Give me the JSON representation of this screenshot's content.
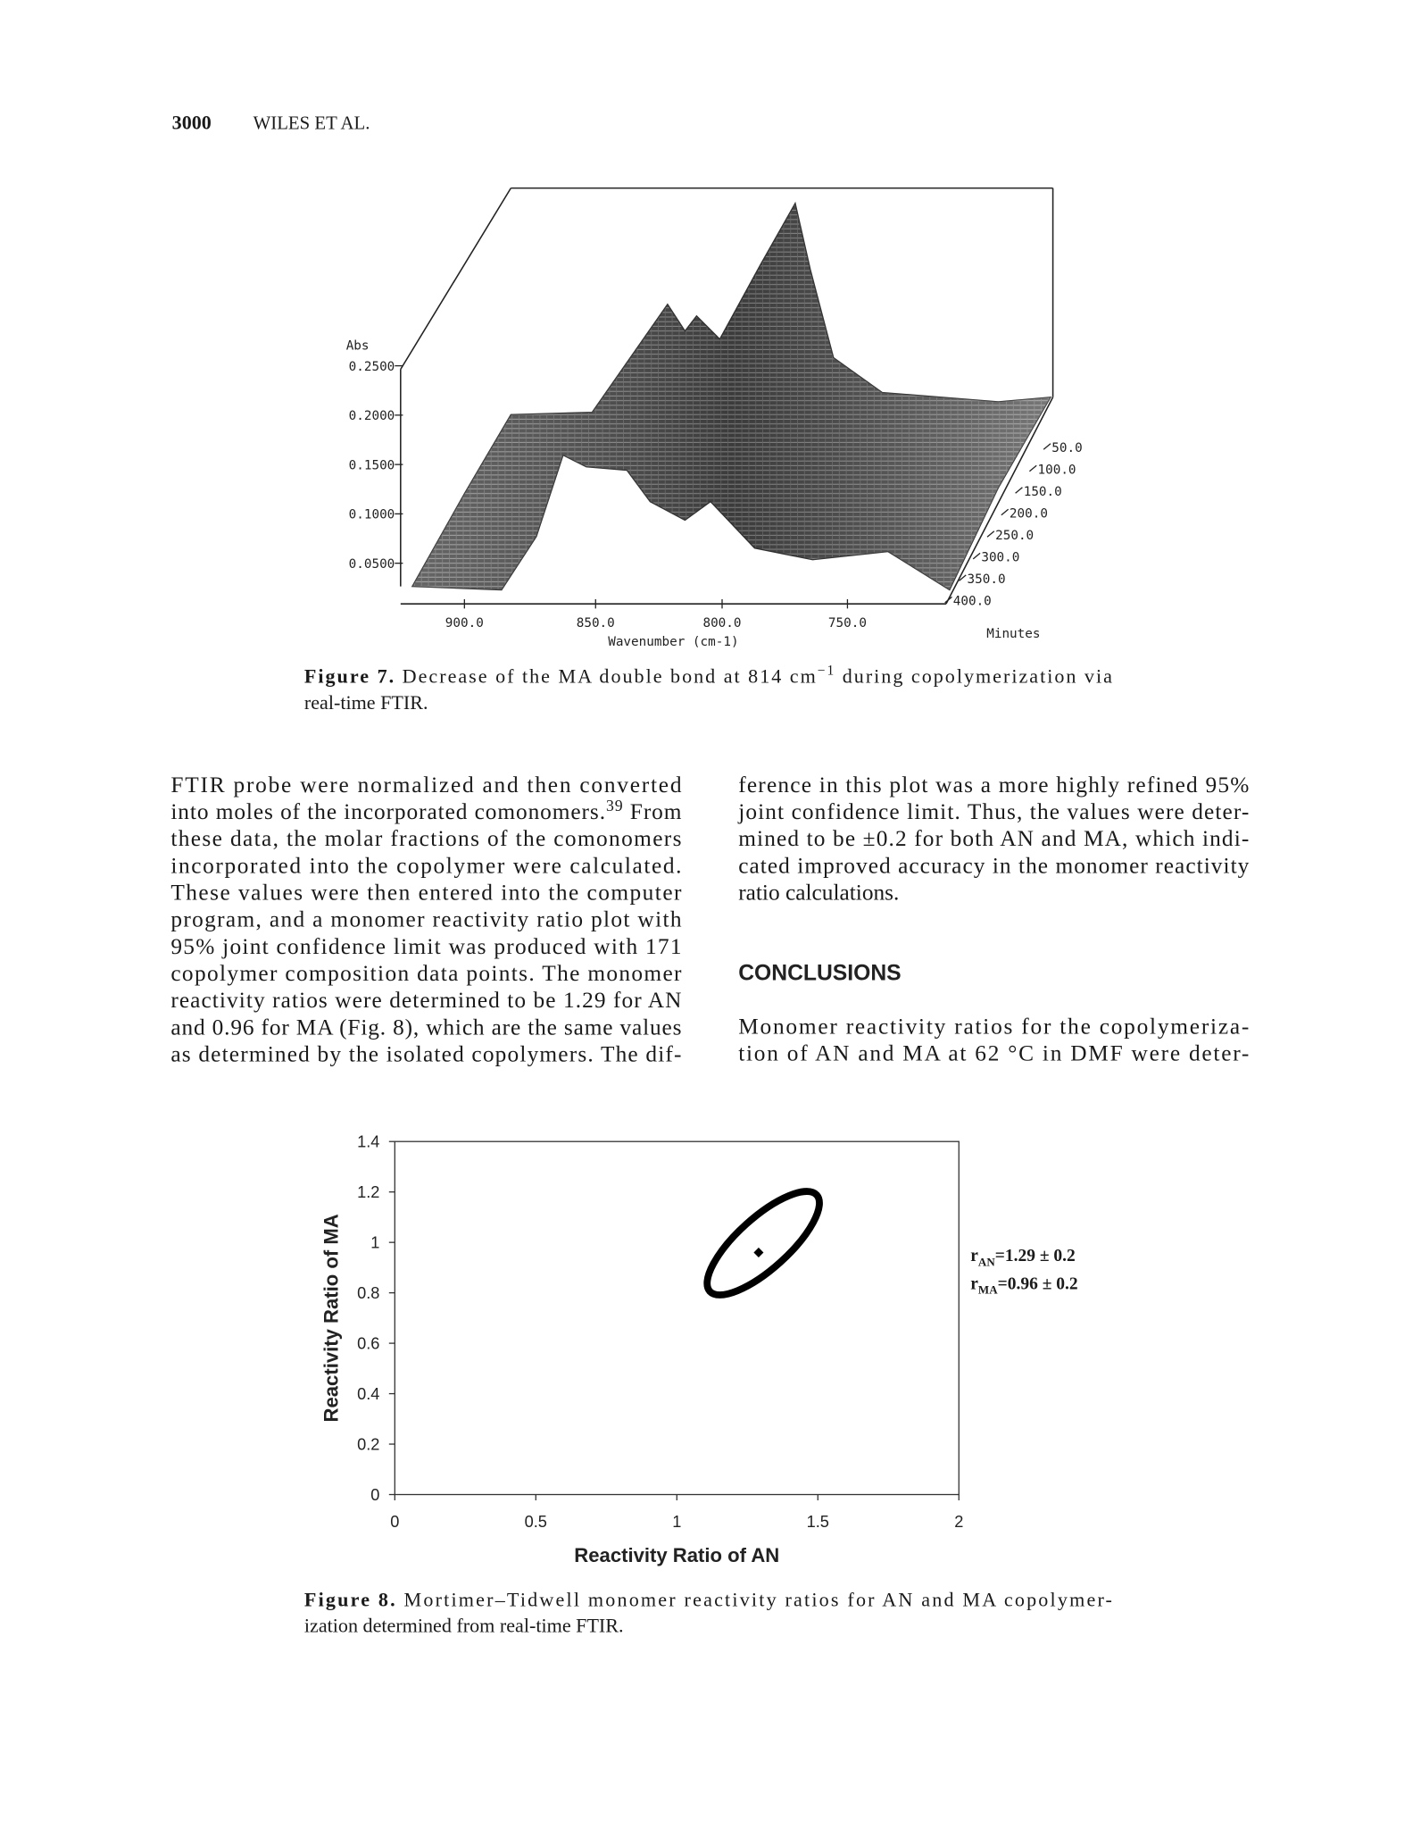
{
  "header": {
    "page_number": "3000",
    "running_head": "WILES ET AL."
  },
  "figure_7": {
    "y_label": "Abs",
    "y_ticks": [
      "0.2500",
      "0.2000",
      "0.1500",
      "0.1000",
      "0.0500"
    ],
    "x_ticks": [
      "900.0",
      "850.0",
      "800.0",
      "750.0"
    ],
    "x_label": "Wavenumber (cm-1)",
    "z_ticks": [
      "50.0",
      "100.0",
      "150.0",
      "200.0",
      "250.0",
      "300.0",
      "350.0",
      "400.0"
    ],
    "z_label": "Minutes",
    "caption": {
      "lines": [
        [
          {
            "bold": "Figure 7."
          },
          {
            "text": "  Decrease of the MA double bond at 814 cm"
          },
          {
            "sup": "−1"
          },
          {
            "text": " during copolymerization via"
          }
        ],
        [
          {
            "text": "real-time FTIR."
          }
        ]
      ]
    }
  },
  "body": {
    "left": {
      "lines": [
        [
          {
            "text": "FTIR probe were normalized and then converted"
          }
        ],
        [
          {
            "text": "into moles of the incorporated comonomers."
          },
          {
            "sup": "39"
          },
          {
            "text": " From"
          }
        ],
        [
          {
            "text": "these data, the molar fractions of the comonomers"
          }
        ],
        [
          {
            "text": "incorporated into the copolymer were calculated."
          }
        ],
        [
          {
            "text": "These values were then entered into the computer"
          }
        ],
        [
          {
            "text": "program, and a monomer reactivity ratio plot with"
          }
        ],
        [
          {
            "text": "95% joint confidence limit was produced with 171"
          }
        ],
        [
          {
            "text": "copolymer composition data points. The monomer"
          }
        ],
        [
          {
            "text": "reactivity ratios were determined to be 1.29 for AN"
          }
        ],
        [
          {
            "text": "and 0.96 for MA (Fig. 8), which are the same values"
          }
        ],
        [
          {
            "text": "as determined by the isolated copolymers. The dif-"
          }
        ]
      ]
    },
    "right": {
      "paragraph_1": {
        "complete": true,
        "lines": [
          [
            {
              "text": "ference in this plot was a more highly refined 95%"
            }
          ],
          [
            {
              "text": "joint confidence limit. Thus, the values were deter-"
            }
          ],
          [
            {
              "text": "mined to be ±0.2 for both AN and MA, which indi-"
            }
          ],
          [
            {
              "text": "cated improved accuracy in the monomer reactivity"
            }
          ],
          [
            {
              "text": "ratio calculations."
            }
          ]
        ]
      },
      "heading": "CONCLUSIONS",
      "paragraph_2": {
        "complete": false,
        "lines": [
          [
            {
              "text": "Monomer reactivity ratios for the copolymeriza-"
            }
          ],
          [
            {
              "text": "tion of AN and MA at 62 °C in DMF were deter-"
            }
          ]
        ]
      }
    }
  },
  "figure_8": {
    "chart_data": {
      "type": "scatter",
      "x_label": "Reactivity Ratio of AN",
      "y_label": "Reactivity Ratio of MA",
      "x": [
        1.29
      ],
      "values": [
        0.96
      ],
      "color": "#000000",
      "xlim": [
        0,
        2
      ],
      "ylim": [
        0,
        1.4
      ],
      "xticks": [
        0,
        0.5,
        1,
        1.5,
        2
      ],
      "yticks": [
        0,
        0.2,
        0.4,
        0.6,
        0.8,
        1,
        1.2,
        1.4
      ],
      "grid": false,
      "annotations": [
        {
          "symbol": "r",
          "subscript": "AN",
          "text": "=1.29 ± 0.2"
        },
        {
          "symbol": "r",
          "subscript": "MA",
          "text": "=0.96 ± 0.2"
        }
      ]
    },
    "caption": {
      "lines": [
        [
          {
            "bold": "Figure 8."
          },
          {
            "text": "  Mortimer–Tidwell monomer reactivity ratios for AN and MA copolymer-"
          }
        ],
        [
          {
            "text": "ization determined from real-time FTIR."
          }
        ]
      ]
    }
  }
}
